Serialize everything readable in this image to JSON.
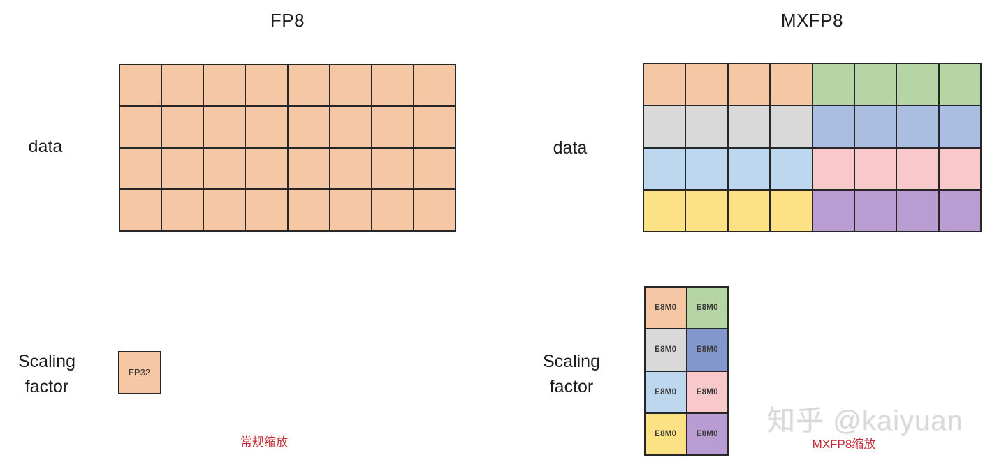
{
  "palette": {
    "orange": "#F6C7A4",
    "green": "#B6D5A4",
    "gray": "#D9D9D9",
    "blue": "#A9BEE1",
    "light_blue": "#BDD7EE",
    "pink": "#F9C8CB",
    "yellow": "#FDE185",
    "purple": "#B89CD2",
    "scale_blue": "#8297CB",
    "border": "#262626",
    "caption_red": "#C42B33",
    "watermark_gray": "#D9D9D9"
  },
  "left_panel": {
    "title": "FP8",
    "data_label": "data",
    "scaling_label": {
      "line1": "Scaling",
      "line2": "factor"
    },
    "data_grid": {
      "rows": 4,
      "cols": 8,
      "cell_color": "orange"
    },
    "scale_box": {
      "label": "FP32",
      "color": "orange"
    },
    "caption": "常规缩放"
  },
  "right_panel": {
    "title": "MXFP8",
    "data_label": "data",
    "scaling_label": {
      "line1": "Scaling",
      "line2": "factor"
    },
    "data_grid": {
      "rows": 4,
      "cols": 8,
      "block_cols": 4,
      "row_colors": [
        [
          "orange",
          "green"
        ],
        [
          "gray",
          "blue"
        ],
        [
          "light_blue",
          "pink"
        ],
        [
          "yellow",
          "purple"
        ]
      ]
    },
    "scale_grid": {
      "rows": 4,
      "cols": 2,
      "cell_label": "E8M0",
      "row_colors": [
        [
          "orange",
          "green"
        ],
        [
          "gray",
          "scale_blue"
        ],
        [
          "light_blue",
          "pink"
        ],
        [
          "yellow",
          "purple"
        ]
      ]
    },
    "caption": "MXFP8缩放"
  },
  "watermark": {
    "text": "知乎 @kaiyuan"
  }
}
